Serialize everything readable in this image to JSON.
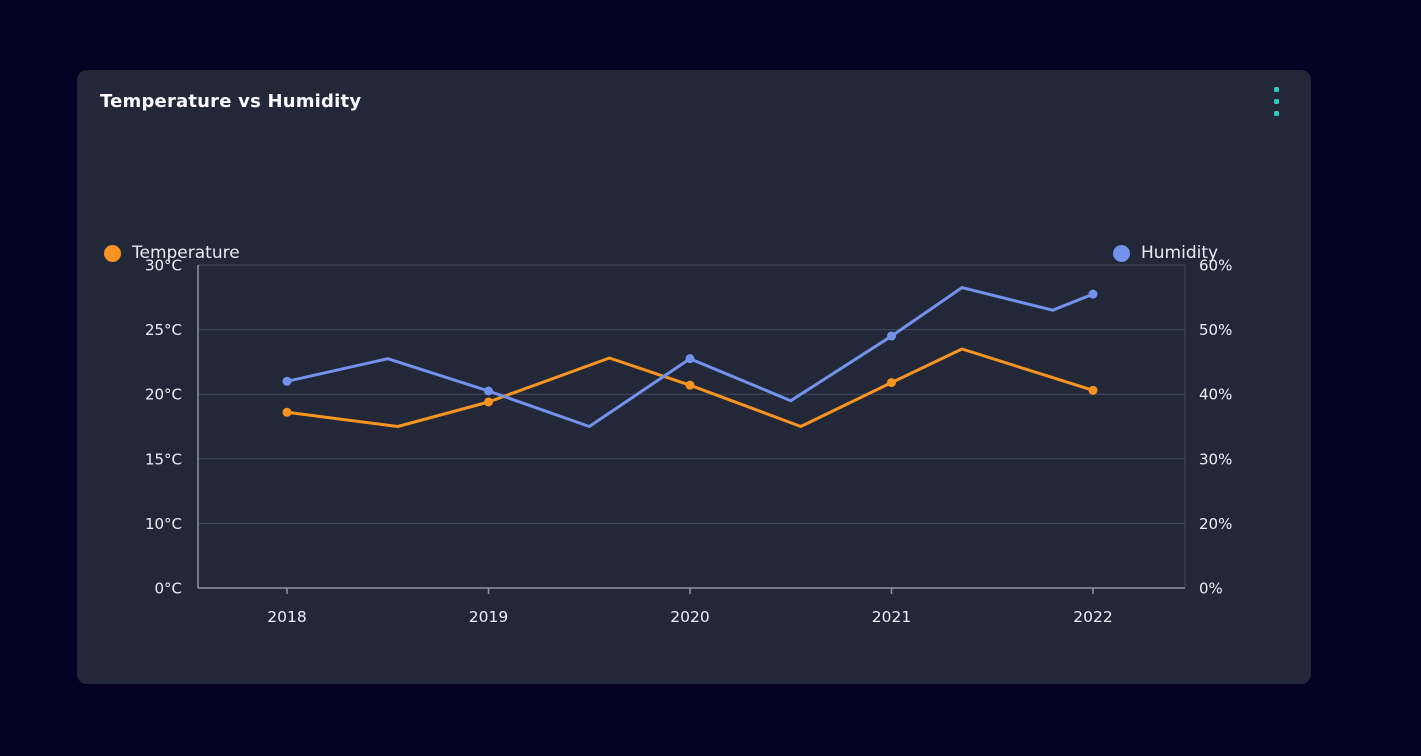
{
  "card": {
    "title": "Temperature vs Humidity",
    "menu_dot_color": "#2bc8c3"
  },
  "legend": [
    {
      "label": "Temperature",
      "color": "#f79321",
      "position": "left"
    },
    {
      "label": "Humidity",
      "color": "#7292ec",
      "position": "right"
    }
  ],
  "chart_data": {
    "type": "line",
    "title": "Temperature vs Humidity",
    "x_tick_labels": [
      "2018",
      "2019",
      "2020",
      "2021",
      "2022"
    ],
    "x_tick_values": [
      2018,
      2019,
      2020,
      2021,
      2022
    ],
    "left_axis": {
      "tick_labels": [
        "30°C",
        "25°C",
        "20°C",
        "15°C",
        "10°C",
        "0°C"
      ],
      "tick_values": [
        30,
        25,
        20,
        15,
        10,
        0
      ],
      "unit": "°C"
    },
    "right_axis": {
      "tick_labels": [
        "60%",
        "50%",
        "40%",
        "30%",
        "20%",
        "0%"
      ],
      "tick_values": [
        60,
        50,
        40,
        30,
        20,
        0
      ],
      "unit": "%"
    },
    "grid": true,
    "legend_position": "top",
    "series": [
      {
        "name": "Temperature",
        "axis": "left",
        "color": "#f79321",
        "points": [
          [
            2018,
            18.6
          ],
          [
            2018.55,
            17.5
          ],
          [
            2019,
            19.4
          ],
          [
            2019.6,
            22.8
          ],
          [
            2020,
            20.7
          ],
          [
            2020.55,
            17.5
          ],
          [
            2021,
            20.9
          ],
          [
            2021.35,
            23.5
          ],
          [
            2022,
            20.3
          ]
        ],
        "marker_x": [
          2018,
          2019,
          2020,
          2021,
          2022
        ]
      },
      {
        "name": "Humidity",
        "axis": "right",
        "color": "#7292ec",
        "points": [
          [
            2018,
            42
          ],
          [
            2018.5,
            45.5
          ],
          [
            2019,
            40.5
          ],
          [
            2019.5,
            35
          ],
          [
            2020,
            45.5
          ],
          [
            2020.5,
            39
          ],
          [
            2021,
            49
          ],
          [
            2021.35,
            56.5
          ],
          [
            2021.8,
            53
          ],
          [
            2022,
            55.5
          ]
        ],
        "marker_x": [
          2018,
          2019,
          2020,
          2021,
          2022
        ]
      }
    ],
    "colors": {
      "axis_line": "#8e93a7",
      "gridline": "#454a60",
      "tick_text": "#edeef4"
    }
  }
}
